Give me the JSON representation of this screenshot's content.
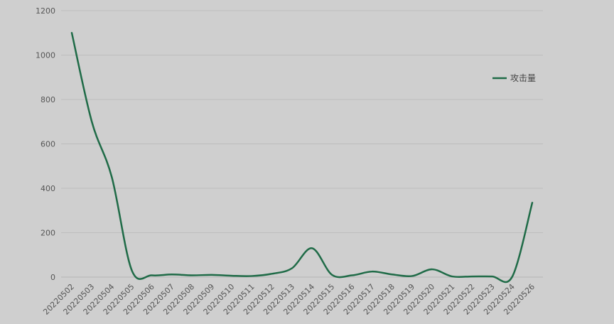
{
  "chart_data": {
    "type": "line",
    "title": "",
    "xlabel": "",
    "ylabel": "",
    "ylim": [
      0,
      1200
    ],
    "yticks": [
      0,
      200,
      400,
      600,
      800,
      1000,
      1200
    ],
    "grid": "horizontal",
    "legend_position": "right",
    "x": [
      "20220502",
      "20220503",
      "20220504",
      "20220505",
      "20220506",
      "20220507",
      "20220508",
      "20220509",
      "20220510",
      "20220511",
      "20220512",
      "20220513",
      "20220514",
      "20220515",
      "20220516",
      "20220517",
      "20220518",
      "20220519",
      "20220520",
      "20220521",
      "20220522",
      "20220523",
      "20220524",
      "20220526"
    ],
    "series": [
      {
        "name": "攻击量",
        "color": "#1f6b47",
        "values": [
          1100,
          700,
          450,
          30,
          8,
          12,
          8,
          10,
          6,
          5,
          15,
          40,
          130,
          10,
          8,
          25,
          12,
          5,
          35,
          3,
          3,
          3,
          2,
          335
        ]
      }
    ]
  }
}
